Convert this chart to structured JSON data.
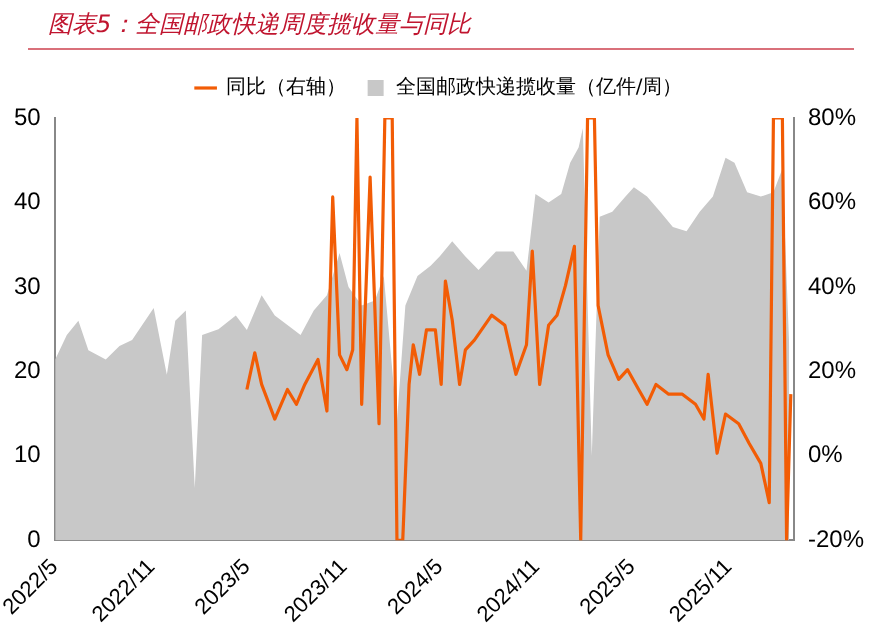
{
  "chart_data": {
    "type": "line",
    "title": "图表5：全国邮政快递周度揽收量与同比",
    "legend": "top",
    "marker": "none",
    "xlim": [
      "2022-05-01",
      "2026-03-05"
    ],
    "xticks": [
      {
        "value": "2022-05-01",
        "label": "2022/5"
      },
      {
        "value": "2022-11-01",
        "label": "2022/11"
      },
      {
        "value": "2023-05-01",
        "label": "2023/5"
      },
      {
        "value": "2023-11-01",
        "label": "2023/11"
      },
      {
        "value": "2024-05-01",
        "label": "2024/5"
      },
      {
        "value": "2024-11-01",
        "label": "2024/11"
      },
      {
        "value": "2025-05-01",
        "label": "2025/5"
      },
      {
        "value": "2025-11-01",
        "label": "2025/11"
      }
    ],
    "ylim": [
      0,
      50
    ],
    "yticks": [
      0,
      10,
      20,
      30,
      40,
      50
    ],
    "y2lim": [
      -20,
      80
    ],
    "y2ticks": [
      {
        "value": -20,
        "label": "-20%"
      },
      {
        "value": 0,
        "label": "0%"
      },
      {
        "value": 20,
        "label": "20%"
      },
      {
        "value": 40,
        "label": "40%"
      },
      {
        "value": 60,
        "label": "60%"
      },
      {
        "value": 80,
        "label": "80%"
      }
    ],
    "series": [
      {
        "name": "全国邮政快递揽收量（亿件/周）",
        "type": "area",
        "color": "#c8c8c8",
        "x": [
          "2022-05-02",
          "2022-05-24",
          "2022-06-15",
          "2022-07-04",
          "2022-08-06",
          "2022-09-01",
          "2022-09-25",
          "2022-11-05",
          "2022-11-30",
          "2022-12-16",
          "2023-01-05",
          "2023-01-22",
          "2023-02-05",
          "2023-03-08",
          "2023-04-10",
          "2023-05-01",
          "2023-05-29",
          "2023-06-23",
          "2023-07-17",
          "2023-08-11",
          "2023-09-05",
          "2023-09-30",
          "2023-10-24",
          "2023-11-10",
          "2023-12-05",
          "2023-12-30",
          "2024-01-16",
          "2024-02-10",
          "2024-02-26",
          "2024-03-20",
          "2024-04-14",
          "2024-05-01",
          "2024-05-25",
          "2024-06-19",
          "2024-07-14",
          "2024-08-16",
          "2024-09-18",
          "2024-10-13",
          "2024-10-30",
          "2024-11-24",
          "2024-12-18",
          "2025-01-04",
          "2025-01-20",
          "2025-01-28",
          "2025-02-14",
          "2025-03-01",
          "2025-03-25",
          "2025-04-19",
          "2025-05-05",
          "2025-05-30",
          "2025-06-24",
          "2025-07-18",
          "2025-08-13",
          "2025-09-07",
          "2025-10-02",
          "2025-10-26",
          "2025-11-12",
          "2025-12-06",
          "2026-01-01",
          "2026-01-25",
          "2026-02-11",
          "2026-02-24"
        ],
        "values": [
          21.4,
          24.3,
          26,
          22.5,
          21.4,
          23,
          23.7,
          27.5,
          19.6,
          26,
          27.2,
          6.2,
          24.3,
          25,
          26.6,
          24.9,
          29,
          26.6,
          25.5,
          24.3,
          27.2,
          29,
          34,
          30,
          27.8,
          28.4,
          31.3,
          14,
          27.8,
          31.3,
          32.5,
          33.6,
          35.4,
          33.6,
          32,
          34.2,
          34.2,
          31.9,
          41,
          40,
          41,
          44.7,
          46.5,
          48.8,
          10,
          38.3,
          38.9,
          40.7,
          41.8,
          40.7,
          38.9,
          37.1,
          36.6,
          38.9,
          40.7,
          45.3,
          44.7,
          41.2,
          40.7,
          41.2,
          44,
          23
        ]
      },
      {
        "name": "同比（右轴）",
        "type": "line",
        "axis": "y2",
        "color": "#f25c05",
        "x": [
          "2023-05-01",
          "2023-05-16",
          "2023-05-29",
          "2023-06-23",
          "2023-07-17",
          "2023-08-03",
          "2023-08-19",
          "2023-09-13",
          "2023-09-30",
          "2023-10-11",
          "2023-10-24",
          "2023-11-07",
          "2023-11-18",
          "2023-11-26",
          "2023-12-05",
          "2023-12-21",
          "2024-01-07",
          "2024-01-18",
          "2024-02-01",
          "2024-02-10",
          "2024-02-21",
          "2024-03-04",
          "2024-03-12",
          "2024-03-24",
          "2024-04-06",
          "2024-04-23",
          "2024-05-04",
          "2024-05-12",
          "2024-05-25",
          "2024-06-08",
          "2024-06-19",
          "2024-07-06",
          "2024-08-08",
          "2024-09-02",
          "2024-09-23",
          "2024-10-13",
          "2024-10-24",
          "2024-11-07",
          "2024-11-24",
          "2024-12-10",
          "2024-12-26",
          "2025-01-12",
          "2025-01-24",
          "2025-02-06",
          "2025-02-19",
          "2025-02-26",
          "2025-03-17",
          "2025-04-06",
          "2025-04-23",
          "2025-05-14",
          "2025-05-30",
          "2025-06-16",
          "2025-07-10",
          "2025-08-05",
          "2025-08-30",
          "2025-09-15",
          "2025-09-23",
          "2025-10-10",
          "2025-10-26",
          "2025-11-20",
          "2025-12-10",
          "2026-01-01",
          "2026-01-17",
          "2026-01-25",
          "2026-02-11",
          "2026-02-19",
          "2026-02-27"
        ],
        "values": [
          15.7,
          24.4,
          16.9,
          8.7,
          15.7,
          12.2,
          16.9,
          22.8,
          10.6,
          61.3,
          23.9,
          20.4,
          25.1,
          80,
          12.2,
          66,
          7.6,
          80,
          80,
          -20,
          -20,
          16.9,
          26.3,
          19.3,
          29.8,
          29.8,
          16.9,
          41.4,
          32.1,
          16.9,
          25.1,
          27.4,
          33.3,
          30.9,
          19.3,
          26.3,
          48.5,
          16.9,
          30.9,
          33.3,
          40.3,
          49.6,
          -20,
          80,
          80,
          35.6,
          23.9,
          18.1,
          20.4,
          15.7,
          12.2,
          16.9,
          14.6,
          14.6,
          12.2,
          8.7,
          19.3,
          0.6,
          9.9,
          7.6,
          2.9,
          -1.8,
          -11.1,
          80,
          80,
          -20,
          14.6
        ]
      }
    ]
  }
}
